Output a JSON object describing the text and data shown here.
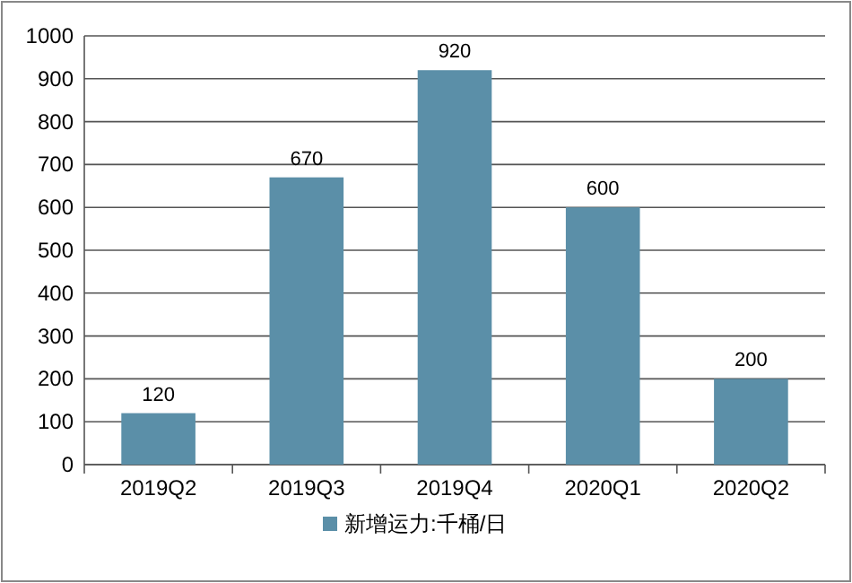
{
  "chart_data": {
    "type": "bar",
    "categories": [
      "2019Q2",
      "2019Q3",
      "2019Q4",
      "2020Q1",
      "2020Q2"
    ],
    "series": [
      {
        "name": "新增运力:千桶/日",
        "color": "#5b8fa8",
        "values": [
          120,
          670,
          920,
          600,
          200
        ]
      }
    ],
    "ylim": [
      0,
      1000
    ],
    "yticks": [
      0,
      100,
      200,
      300,
      400,
      500,
      600,
      700,
      800,
      900,
      1000
    ],
    "grid": "y",
    "legend": "bottom",
    "data_labels": true
  }
}
